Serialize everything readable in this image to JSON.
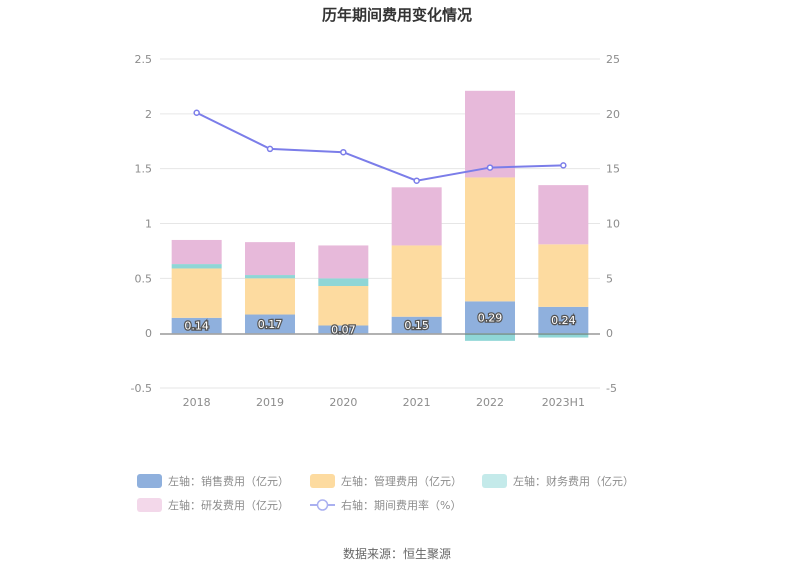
{
  "chart_data": {
    "type": "bar",
    "title": "历年期间费用变化情况",
    "categories": [
      "2018",
      "2019",
      "2020",
      "2021",
      "2022",
      "2023H1"
    ],
    "series": [
      {
        "name": "左轴：销售费用（亿元）",
        "axis": "left",
        "kind": "stacked-bar",
        "color": "#8fb0dd",
        "values": [
          0.14,
          0.17,
          0.07,
          0.15,
          0.29,
          0.24
        ],
        "labels": [
          "0.14",
          "0.17",
          "0.07",
          "0.15",
          "0.29",
          "0.24"
        ]
      },
      {
        "name": "左轴：管理费用（亿元）",
        "axis": "left",
        "kind": "stacked-bar",
        "color": "#fddba0",
        "values": [
          0.45,
          0.33,
          0.36,
          0.65,
          1.13,
          0.57
        ]
      },
      {
        "name": "左轴：财务费用（亿元）",
        "axis": "left",
        "kind": "stacked-bar",
        "color": "#8fd6d6",
        "values": [
          0.04,
          0.03,
          0.07,
          0.0,
          -0.07,
          -0.04
        ]
      },
      {
        "name": "左轴：研发费用（亿元）",
        "axis": "left",
        "kind": "stacked-bar",
        "color": "#e7b9da",
        "values": [
          0.22,
          0.3,
          0.3,
          0.53,
          0.79,
          0.54
        ]
      },
      {
        "name": "右轴：期间费用率（%）",
        "axis": "right",
        "kind": "line",
        "color": "#7b7de9",
        "values": [
          20.1,
          16.8,
          16.5,
          13.9,
          15.1,
          15.3
        ]
      }
    ],
    "y_left": {
      "min": -0.5,
      "max": 2.5,
      "ticks": [
        "-0.5",
        "0",
        "0.5",
        "1",
        "1.5",
        "2",
        "2.5"
      ]
    },
    "y_right": {
      "min": -5,
      "max": 25,
      "ticks": [
        "-5",
        "0",
        "5",
        "10",
        "15",
        "20",
        "25"
      ]
    },
    "grid": true,
    "legend_position": "bottom"
  },
  "source": "数据来源：恒生聚源",
  "legend_swatch_colors": {
    "sales": "#8fb0dd",
    "admin": "#fddba0",
    "finance": "#c4eaea",
    "rnd": "#f3d8ea",
    "rate": "#aab0f0"
  }
}
